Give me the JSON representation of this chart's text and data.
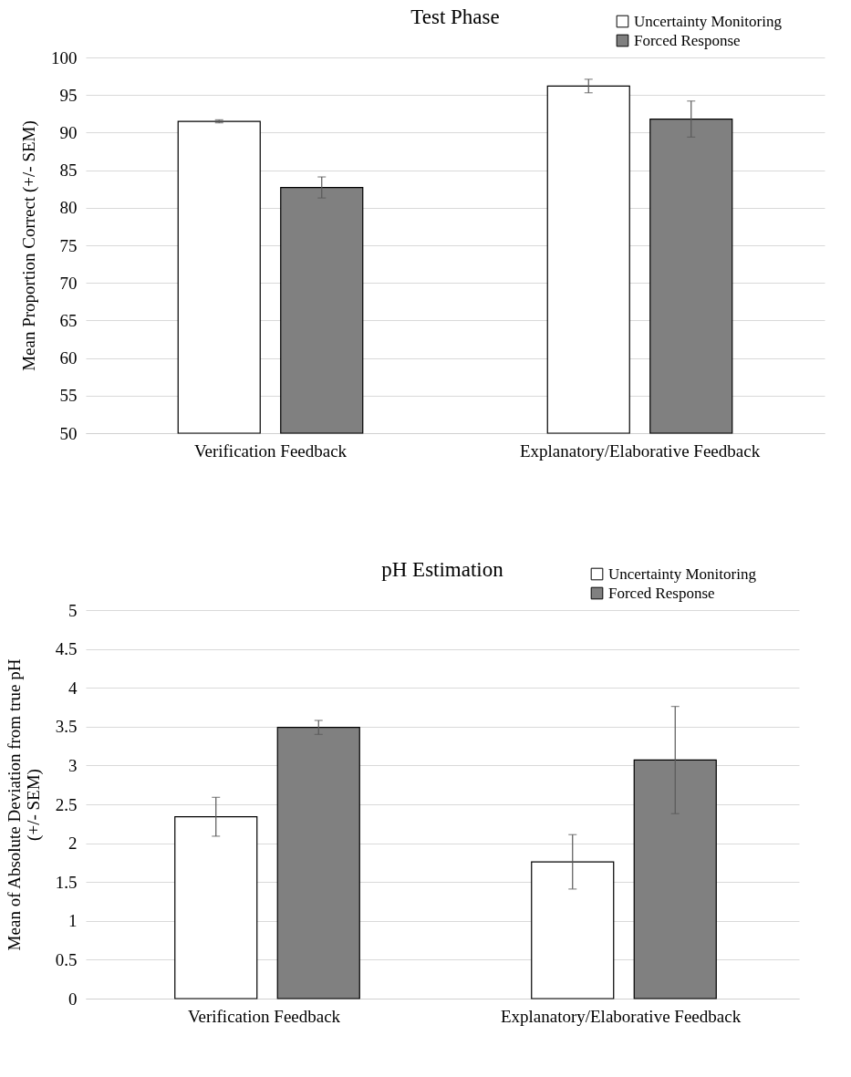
{
  "chart_data": [
    {
      "type": "bar",
      "title": "Test Phase",
      "ylabel": "Mean Proportion Correct (+/- SEM)",
      "categories": [
        "Verification Feedback",
        "Explanatory/Elaborative Feedback"
      ],
      "series": [
        {
          "name": "Uncertainty Monitoring",
          "color": "#ffffff",
          "values": [
            91.5,
            96.2
          ],
          "errors": [
            0.2,
            0.9
          ]
        },
        {
          "name": "Forced Response",
          "color": "#808080",
          "values": [
            82.7,
            91.8
          ],
          "errors": [
            1.4,
            2.4
          ]
        }
      ],
      "ylim": [
        50,
        100
      ],
      "yticks": [
        50,
        55,
        60,
        65,
        70,
        75,
        80,
        85,
        90,
        95,
        100
      ],
      "grid": "y",
      "legend": "top right"
    },
    {
      "type": "bar",
      "title": "pH Estimation",
      "ylabel": "Mean of Absolute Deviation from true pH (+/- SEM)",
      "categories": [
        "Verification Feedback",
        "Explanatory/Elaborative Feedback"
      ],
      "series": [
        {
          "name": "Uncertainty Monitoring",
          "color": "#ffffff",
          "values": [
            2.34,
            1.76
          ],
          "errors": [
            0.25,
            0.35
          ]
        },
        {
          "name": "Forced Response",
          "color": "#808080",
          "values": [
            3.49,
            3.07
          ],
          "errors": [
            0.09,
            0.69
          ]
        }
      ],
      "ylim": [
        0,
        5
      ],
      "yticks": [
        0,
        0.5,
        1,
        1.5,
        2,
        2.5,
        3,
        3.5,
        4,
        4.5,
        5
      ],
      "grid": "y",
      "legend": "top right"
    }
  ]
}
